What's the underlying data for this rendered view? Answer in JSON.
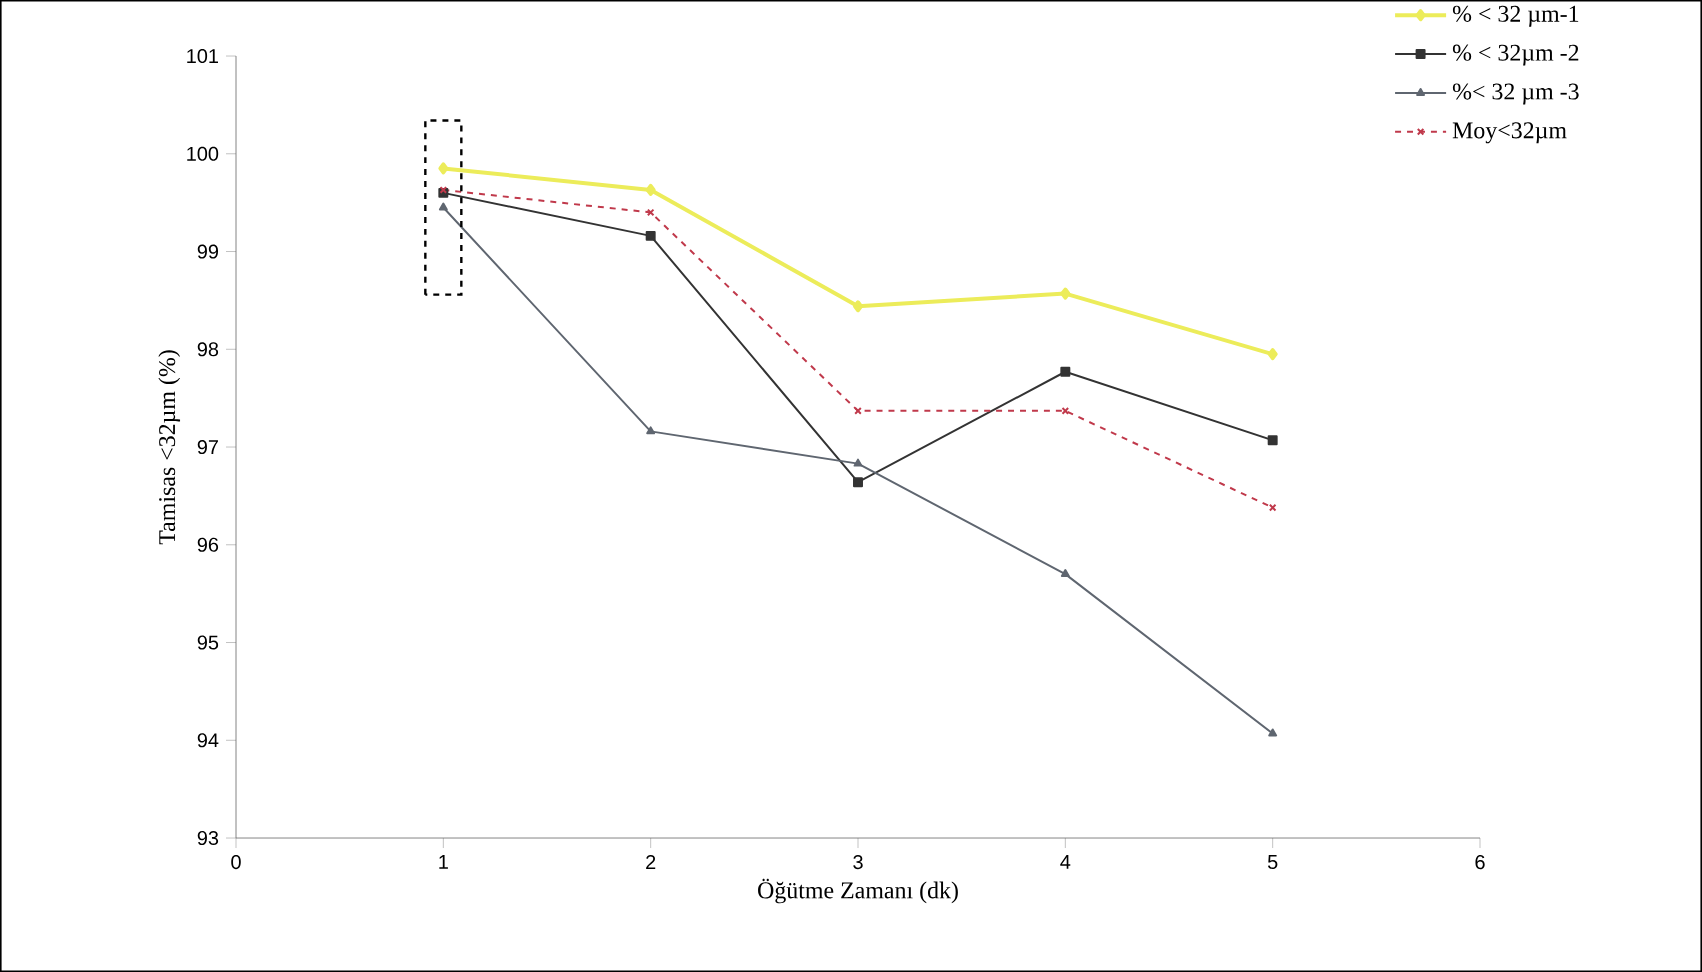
{
  "chart_data": {
    "type": "line",
    "xlabel": "Öğütme Zamanı (dk)",
    "ylabel": "Tamisas <32µm (%)",
    "x": [
      1,
      2,
      3,
      4,
      5
    ],
    "series": [
      {
        "name": "% < 32 µm-1",
        "color": "#ecec5a",
        "marker": "diamond",
        "line_style": "solid",
        "values": [
          99.85,
          99.63,
          98.44,
          98.57,
          97.95
        ]
      },
      {
        "name": "% < 32µm -2",
        "color": "#333333",
        "marker": "square",
        "line_style": "solid",
        "values": [
          99.6,
          99.16,
          96.64,
          97.77,
          97.07
        ]
      },
      {
        "name": "%< 32 µm -3",
        "color": "#5f6670",
        "marker": "triangle",
        "line_style": "solid",
        "values": [
          99.45,
          97.16,
          96.83,
          95.7,
          94.07
        ]
      },
      {
        "name": "Moy<32µm",
        "color": "#c0394b",
        "marker": "cross",
        "line_style": "dashed",
        "values": [
          99.63,
          99.4,
          97.37,
          97.37,
          96.38
        ]
      }
    ],
    "xlim": [
      0,
      6
    ],
    "xticks": [
      0,
      1,
      2,
      3,
      4,
      5,
      6
    ],
    "ylim": [
      93,
      101
    ],
    "yticks": [
      93,
      94,
      95,
      96,
      97,
      98,
      99,
      100,
      101
    ],
    "grid": false,
    "legend": "top right"
  }
}
